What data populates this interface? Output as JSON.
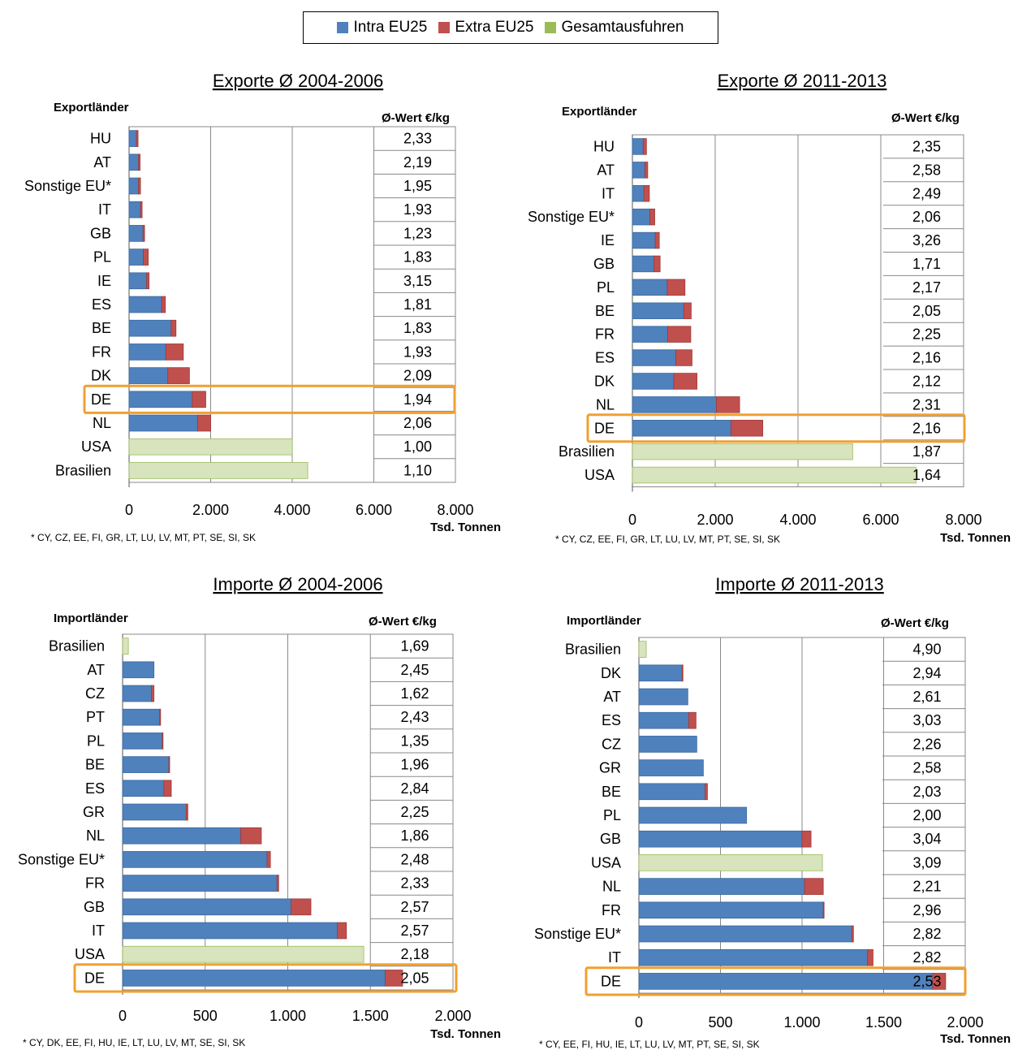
{
  "colors": {
    "intra": "#4F81BD",
    "extra": "#C0504D",
    "gesamt": "#D7E4BD",
    "gesamt_stroke": "#9BBB59",
    "highlight": "#F0A030"
  },
  "legend": [
    {
      "label": "Intra EU25",
      "color": "#4F81BD"
    },
    {
      "label": "Extra EU25",
      "color": "#C0504D"
    },
    {
      "label": "Gesamtausfuhren",
      "color": "#9BBB59"
    }
  ],
  "chart_data": [
    {
      "type": "bar",
      "title": "Exporte Ø 2004-2006",
      "category_header": "Exportländer",
      "value_header": "Ø-Wert €/kg",
      "xlabel": "Tsd. Tonnen",
      "xlim": [
        0,
        8000
      ],
      "xticks": [
        "0",
        "2.000",
        "4.000",
        "6.000",
        "8.000"
      ],
      "footnote": "* CY, CZ, EE, FI, GR, LT, LU, LV, MT, PT, SE, SI, SK",
      "highlight": "DE",
      "categories": [
        "HU",
        "AT",
        "Sonstige EU*",
        "IT",
        "GB",
        "PL",
        "IE",
        "ES",
        "BE",
        "FR",
        "DK",
        "DE",
        "NL",
        "USA",
        "Brasilien"
      ],
      "intra": [
        180,
        230,
        230,
        280,
        340,
        350,
        430,
        800,
        1030,
        900,
        950,
        1550,
        1680,
        0,
        0
      ],
      "extra": [
        40,
        40,
        50,
        40,
        40,
        120,
        60,
        90,
        120,
        430,
        530,
        330,
        320,
        0,
        0
      ],
      "gesamt": [
        0,
        0,
        0,
        0,
        0,
        0,
        0,
        0,
        0,
        0,
        0,
        0,
        0,
        4000,
        4380
      ],
      "wert": [
        "2,33",
        "2,19",
        "1,95",
        "1,93",
        "1,23",
        "1,83",
        "3,15",
        "1,81",
        "1,83",
        "1,93",
        "2,09",
        "1,94",
        "2,06",
        "1,00",
        "1,10"
      ]
    },
    {
      "type": "bar",
      "title": "Exporte Ø 2011-2013",
      "category_header": "Exportländer",
      "value_header": "Ø-Wert €/kg",
      "xlabel": "Tsd. Tonnen",
      "xlim": [
        0,
        8000
      ],
      "xticks": [
        "0",
        "2.000",
        "4.000",
        "6.000",
        "8.000"
      ],
      "footnote": "* CY, CZ, EE, FI, GR, LT, LU, LV, MT, PT, SE, SI, SK",
      "highlight": "DE",
      "categories": [
        "HU",
        "AT",
        "IT",
        "Sonstige EU*",
        "IE",
        "GB",
        "PL",
        "BE",
        "FR",
        "ES",
        "DK",
        "NL",
        "DE",
        "Brasilien",
        "USA"
      ],
      "intra": [
        260,
        300,
        280,
        420,
        550,
        520,
        840,
        1240,
        850,
        1050,
        1000,
        2030,
        2380,
        0,
        0
      ],
      "extra": [
        80,
        70,
        130,
        120,
        100,
        150,
        430,
        180,
        560,
        390,
        560,
        560,
        770,
        0,
        0
      ],
      "gesamt": [
        0,
        0,
        0,
        0,
        0,
        0,
        0,
        0,
        0,
        0,
        0,
        0,
        0,
        5320,
        6850
      ],
      "wert": [
        "2,35",
        "2,58",
        "2,49",
        "2,06",
        "3,26",
        "1,71",
        "2,17",
        "2,05",
        "2,25",
        "2,16",
        "2,12",
        "2,31",
        "2,16",
        "1,87",
        "1,64"
      ]
    },
    {
      "type": "bar",
      "title": "Importe Ø 2004-2006",
      "category_header": "Importländer",
      "value_header": "Ø-Wert €/kg",
      "xlabel": "Tsd. Tonnen",
      "xlim": [
        0,
        2000
      ],
      "xticks": [
        "0",
        "500",
        "1.000",
        "1.500",
        "2.000"
      ],
      "footnote": "* CY, DK, EE, FI, HU, IE, LT, LU, LV, MT, SE, SI, SK",
      "highlight": "DE",
      "categories": [
        "Brasilien",
        "AT",
        "CZ",
        "PT",
        "PL",
        "BE",
        "ES",
        "GR",
        "NL",
        "Sonstige EU*",
        "FR",
        "GB",
        "IT",
        "USA",
        "DE"
      ],
      "intra": [
        0,
        190,
        175,
        225,
        240,
        280,
        250,
        385,
        715,
        875,
        935,
        1020,
        1300,
        0,
        1590
      ],
      "extra": [
        0,
        0,
        15,
        5,
        5,
        5,
        45,
        10,
        125,
        20,
        10,
        120,
        55,
        0,
        105
      ],
      "gesamt": [
        35,
        0,
        0,
        0,
        0,
        0,
        0,
        0,
        0,
        0,
        0,
        0,
        0,
        1460,
        0
      ],
      "wert": [
        "1,69",
        "2,45",
        "1,62",
        "2,43",
        "1,35",
        "1,96",
        "2,84",
        "2,25",
        "1,86",
        "2,48",
        "2,33",
        "2,57",
        "2,57",
        "2,18",
        "2,05"
      ]
    },
    {
      "type": "bar",
      "title": "Importe Ø 2011-2013",
      "category_header": "Importländer",
      "value_header": "Ø-Wert €/kg",
      "xlabel": "Tsd. Tonnen",
      "xlim": [
        0,
        2000
      ],
      "xticks": [
        "0",
        "500",
        "1.000",
        "1.500",
        "2.000"
      ],
      "footnote": "* CY, EE, FI, HU, IE, LT, LU, LV, MT, PT, SE, SI, SK",
      "highlight": "DE",
      "categories": [
        "Brasilien",
        "DK",
        "AT",
        "ES",
        "CZ",
        "GR",
        "BE",
        "PL",
        "GB",
        "USA",
        "NL",
        "FR",
        "Sonstige EU*",
        "IT",
        "DE"
      ],
      "intra": [
        0,
        265,
        300,
        305,
        355,
        395,
        405,
        660,
        1000,
        0,
        1015,
        1130,
        1305,
        1400,
        1800
      ],
      "extra": [
        0,
        5,
        0,
        45,
        0,
        0,
        15,
        0,
        55,
        0,
        115,
        5,
        10,
        35,
        80
      ],
      "gesamt": [
        45,
        0,
        0,
        0,
        0,
        0,
        0,
        0,
        0,
        1125,
        0,
        0,
        0,
        0,
        0
      ],
      "wert": [
        "4,90",
        "2,94",
        "2,61",
        "3,03",
        "2,26",
        "2,58",
        "2,03",
        "2,00",
        "3,04",
        "3,09",
        "2,21",
        "2,96",
        "2,82",
        "2,82",
        "2,53"
      ]
    }
  ]
}
